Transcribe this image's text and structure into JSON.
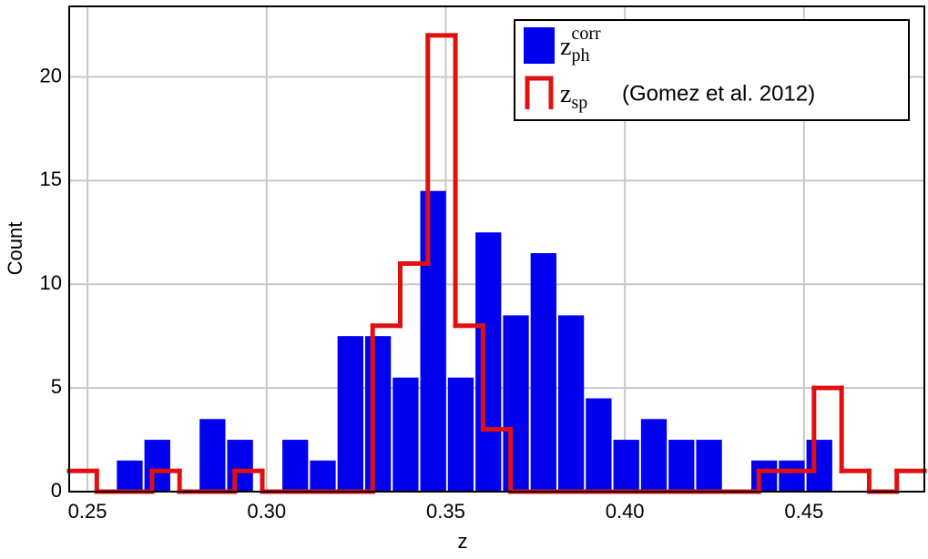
{
  "chart_data": {
    "type": "histogram",
    "xlabel": "z",
    "ylabel": "Count",
    "xlim": [
      0.2449,
      0.4836
    ],
    "ylim": [
      0,
      23.4
    ],
    "xticks": [
      0.25,
      {
        "value": 0.3,
        "label": "0.30"
      },
      0.35,
      {
        "value": 0.4,
        "label": "0.40"
      },
      0.45
    ],
    "yticks": [
      0,
      5,
      10,
      15,
      20
    ],
    "grid": true,
    "legend": "upper right",
    "series": [
      {
        "name": "z",
        "name_sub": "ph",
        "name_sup": "corr",
        "style": "filled",
        "color": "#0000ee",
        "bins": [
          0.2582,
          0.2659,
          0.2736,
          0.2813,
          0.289,
          0.2967,
          0.3044,
          0.3121,
          0.3198,
          0.3275,
          0.3352,
          0.3429,
          0.3506,
          0.3583,
          0.366,
          0.3737,
          0.3814,
          0.3891,
          0.3968,
          0.4045,
          0.4122,
          0.4199,
          0.4276,
          0.4353,
          0.443,
          0.4507,
          0.4584
        ],
        "values": [
          1.5,
          2.5,
          0,
          3.5,
          2.5,
          0,
          2.5,
          1.5,
          7.5,
          7.5,
          5.5,
          14.5,
          5.5,
          12.5,
          8.5,
          11.5,
          8.5,
          4.5,
          2.5,
          3.5,
          2.5,
          2.5,
          0,
          1.5,
          1.5,
          2.5
        ]
      },
      {
        "name": "z",
        "name_sub": "sp",
        "name_note": "(Gomez et al. 2012)",
        "style": "step",
        "color": "#e01010",
        "bins": [
          0.2449,
          0.2526,
          0.2603,
          0.268,
          0.2757,
          0.2834,
          0.2911,
          0.2988,
          0.3065,
          0.3142,
          0.3219,
          0.3296,
          0.3373,
          0.345,
          0.3527,
          0.3604,
          0.3681,
          0.3758,
          0.3835,
          0.3912,
          0.3989,
          0.4066,
          0.4143,
          0.422,
          0.4297,
          0.4374,
          0.4451,
          0.4528,
          0.4605,
          0.4682,
          0.4759,
          0.4836
        ],
        "values": [
          1,
          0,
          0,
          1,
          0,
          0,
          1,
          0,
          0,
          0,
          0,
          8,
          11,
          22,
          8,
          3,
          0,
          0,
          0,
          0,
          0,
          0,
          0,
          0,
          0,
          1,
          1,
          5,
          1,
          0,
          1
        ]
      }
    ]
  }
}
